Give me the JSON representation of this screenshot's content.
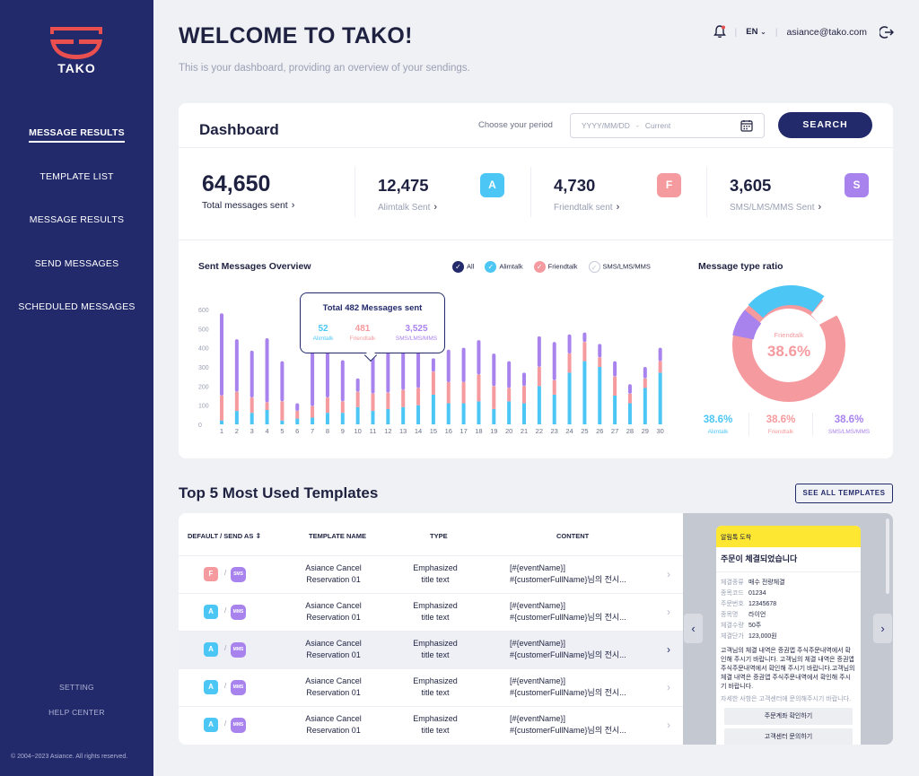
{
  "brand": {
    "name": "TAKO",
    "logo_color": "#e94f4f"
  },
  "sidebar": {
    "items": [
      {
        "label": "MESSAGE RESULTS",
        "active": true
      },
      {
        "label": "TEMPLATE LIST"
      },
      {
        "label": "MESSAGE RESULTS"
      },
      {
        "label": "SEND MESSAGES"
      },
      {
        "label": "SCHEDULED MESSAGES"
      }
    ],
    "footer": {
      "setting": "SETTING",
      "help": "HELP CENTER",
      "copyright": "© 2004~2023 Asiance. All rights reserved."
    }
  },
  "header": {
    "title": "WELCOME TO TAKO!",
    "subtitle": "This is your dashboard, providing an overview of your sendings.",
    "language": "EN",
    "email": "asiance@tako.com"
  },
  "dashboard": {
    "title": "Dashboard",
    "period_label": "Choose your period",
    "period_placeholder": "YYYY/MM/DD   -   Current",
    "search_label": "SEARCH",
    "total": {
      "value": "64,650",
      "label": "Total messages sent"
    },
    "stats": [
      {
        "value": "12,475",
        "label": "Alimtalk Sent",
        "badge": "A",
        "color": "#4cc6f5"
      },
      {
        "value": "4,730",
        "label": "Friendtalk sent",
        "badge": "F",
        "color": "#f59a9e"
      },
      {
        "value": "3,605",
        "label": "SMS/LMS/MMS Sent",
        "badge": "S",
        "color": "#a883ee"
      }
    ]
  },
  "overview": {
    "title": "Sent Messages Overview",
    "legend": [
      {
        "label": "All",
        "color": "#232a6b"
      },
      {
        "label": "Alimtalk",
        "color": "#4cc6f5"
      },
      {
        "label": "Friendtalk",
        "color": "#f59a9e"
      },
      {
        "label": "SMS/LMS/MMS",
        "color": "#ffffff"
      }
    ],
    "tooltip": {
      "title": "Total 482 Messages sent",
      "items": [
        {
          "value": "52",
          "label": "Alimtalk",
          "color": "#4cc6f5"
        },
        {
          "value": "481",
          "label": "Friendtalk",
          "color": "#f59a9e"
        },
        {
          "value": "3,525",
          "label": "SMS/LMS/MMS",
          "color": "#a883ee"
        }
      ]
    }
  },
  "chart_data": {
    "type": "bar",
    "stacked": true,
    "categories": [
      "1",
      "2",
      "3",
      "4",
      "5",
      "6",
      "7",
      "8",
      "9",
      "10",
      "11",
      "12",
      "13",
      "14",
      "15",
      "16",
      "17",
      "18",
      "19",
      "20",
      "21",
      "22",
      "23",
      "24",
      "25",
      "26",
      "27",
      "28",
      "29",
      "30"
    ],
    "ylim": [
      0,
      600
    ],
    "yticks": [
      "0",
      "100",
      "200",
      "300",
      "400",
      "500",
      "600"
    ],
    "colors": {
      "alimtalk": "#4cc6f5",
      "friendtalk": "#f59a9e",
      "sms": "#a883ee"
    },
    "series": [
      {
        "name": "Alimtalk",
        "values": [
          20,
          70,
          60,
          75,
          20,
          30,
          35,
          60,
          60,
          90,
          70,
          80,
          90,
          100,
          155,
          110,
          110,
          120,
          80,
          120,
          110,
          200,
          155,
          270,
          330,
          300,
          150,
          110,
          190,
          270
        ]
      },
      {
        "name": "Friendtalk",
        "values": [
          130,
          100,
          80,
          40,
          100,
          40,
          60,
          80,
          60,
          80,
          90,
          85,
          90,
          90,
          120,
          110,
          110,
          140,
          120,
          70,
          90,
          100,
          75,
          100,
          100,
          50,
          100,
          50,
          50,
          60
        ]
      },
      {
        "name": "SMS/LMS/MMS",
        "values": [
          430,
          275,
          245,
          335,
          210,
          40,
          340,
          290,
          215,
          70,
          285,
          235,
          225,
          190,
          70,
          170,
          180,
          180,
          170,
          140,
          70,
          160,
          200,
          100,
          50,
          70,
          80,
          50,
          60,
          70
        ]
      }
    ]
  },
  "ratio": {
    "title": "Message type ratio",
    "center_label": "Friendtalk",
    "center_value": "38.6%",
    "items": [
      {
        "value": "38.6%",
        "label": "Alimtalk",
        "color": "#4cc6f5"
      },
      {
        "value": "38.6%",
        "label": "Friendtalk",
        "color": "#f59a9e"
      },
      {
        "value": "38.6%",
        "label": "SMS/LMS/MMS",
        "color": "#a883ee"
      }
    ]
  },
  "templates": {
    "title": "Top 5 Most Used Templates",
    "see_all": "SEE ALL TEMPLATES",
    "headers": [
      "DEFAULT / SEND AS",
      "TEMPLATE NAME",
      "TYPE",
      "CONTENT"
    ],
    "rows": [
      {
        "badge": "F",
        "badge_color": "#f59a9e",
        "send": "SMS",
        "name1": "Asiance Cancel",
        "name2": "Reservation 01",
        "type1": "Emphasized",
        "type2": "title text",
        "c1": "[#{eventName}]",
        "c2": "#{customerFullName}님의 전시...",
        "highlight": false
      },
      {
        "badge": "A",
        "badge_color": "#4cc6f5",
        "send": "MMS",
        "name1": "Asiance Cancel",
        "name2": "Reservation 01",
        "type1": "Emphasized",
        "type2": "title text",
        "c1": "[#{eventName}]",
        "c2": "#{customerFullName}님의 전시...",
        "highlight": false
      },
      {
        "badge": "A",
        "badge_color": "#4cc6f5",
        "send": "MMS",
        "name1": "Asiance Cancel",
        "name2": "Reservation 01",
        "type1": "Emphasized",
        "type2": "title text",
        "c1": "[#{eventName}]",
        "c2": "#{customerFullName}님의 전시...",
        "highlight": true
      },
      {
        "badge": "A",
        "badge_color": "#4cc6f5",
        "send": "MMS",
        "name1": "Asiance Cancel",
        "name2": "Reservation 01",
        "type1": "Emphasized",
        "type2": "title text",
        "c1": "[#{eventName}]",
        "c2": "#{customerFullName}님의 전시...",
        "highlight": false
      },
      {
        "badge": "A",
        "badge_color": "#4cc6f5",
        "send": "MMS",
        "name1": "Asiance Cancel",
        "name2": "Reservation 01",
        "type1": "Emphasized",
        "type2": "title text",
        "c1": "[#{eventName}]",
        "c2": "#{customerFullName}님의 전시...",
        "highlight": false
      }
    ]
  },
  "preview": {
    "header": "알림톡 도착",
    "title": "주문이 체결되었습니다",
    "fields": [
      {
        "k": "체결종류",
        "v": "매수 전량체결"
      },
      {
        "k": "종목코드",
        "v": "01234"
      },
      {
        "k": "주문번호",
        "v": "12345678"
      },
      {
        "k": "종목명",
        "v": "라이언"
      },
      {
        "k": "체결수량",
        "v": "50주"
      },
      {
        "k": "체결단가",
        "v": "123,000원"
      }
    ],
    "body": "고객님의 체결 내역은 증권앱 주식주문내역에서 확인해 주시기 바랍니다. 고객님의 체결 내역은 증권앱 주식주문내역에서 확인해 주시기 바랍니다.고객님의 체결 내역은 증권앱 주식주문내역에서 확인해 주시기 바랍니다.",
    "note": "자세한 사항은 고객센터에 문의해주시기 바랍니다.",
    "button1": "주문계좌 확인하기",
    "button2": "고객센터 문의하기"
  }
}
